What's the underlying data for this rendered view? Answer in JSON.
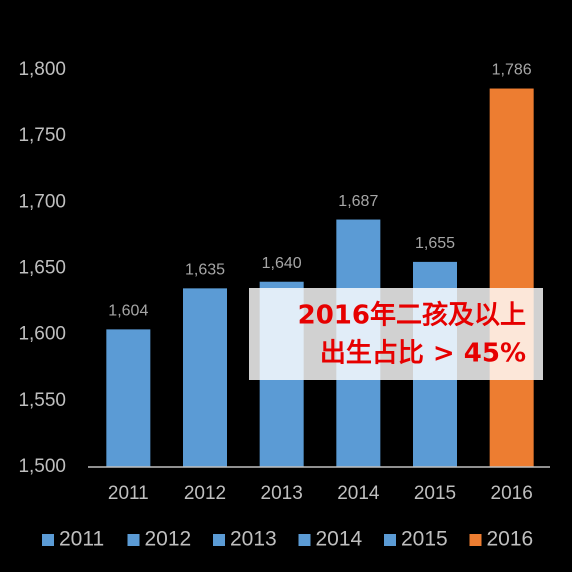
{
  "chart_data": {
    "type": "bar",
    "categories": [
      "2011",
      "2012",
      "2013",
      "2014",
      "2015",
      "2016"
    ],
    "values": [
      1604,
      1635,
      1640,
      1687,
      1655,
      1786
    ],
    "value_labels": [
      "1,604",
      "1,635",
      "1,640",
      "1,687",
      "1,655",
      "1,786"
    ],
    "colors": [
      "#5b9bd5",
      "#5b9bd5",
      "#5b9bd5",
      "#5b9bd5",
      "#5b9bd5",
      "#ed7d31"
    ],
    "ylim": [
      1500,
      1800
    ],
    "yticks": [
      {
        "value": 1500,
        "label": "1,500"
      },
      {
        "value": 1550,
        "label": "1,550"
      },
      {
        "value": 1600,
        "label": "1,600"
      },
      {
        "value": 1650,
        "label": "1,650"
      },
      {
        "value": 1700,
        "label": "1,700"
      },
      {
        "value": 1750,
        "label": "1,750"
      },
      {
        "value": 1800,
        "label": "1,800"
      }
    ],
    "annotation": [
      "2016年二孩及以上",
      "出生占比 > 45%"
    ],
    "legend": "bottom"
  }
}
